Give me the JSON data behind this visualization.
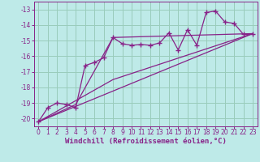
{
  "xlabel": "Windchill (Refroidissement éolien,°C)",
  "background_color": "#beeae8",
  "grid_color": "#99ccbb",
  "line_color": "#882288",
  "xlim": [
    -0.5,
    23.5
  ],
  "ylim": [
    -20.5,
    -12.5
  ],
  "xticks": [
    0,
    1,
    2,
    3,
    4,
    5,
    6,
    7,
    8,
    9,
    10,
    11,
    12,
    13,
    14,
    15,
    16,
    17,
    18,
    19,
    20,
    21,
    22,
    23
  ],
  "yticks": [
    -13,
    -14,
    -15,
    -16,
    -17,
    -18,
    -19,
    -20
  ],
  "scatter_x": [
    0,
    1,
    2,
    3,
    4,
    5,
    6,
    7,
    8,
    9,
    10,
    11,
    12,
    13,
    14,
    15,
    16,
    17,
    18,
    19,
    20,
    21,
    22,
    23
  ],
  "scatter_y": [
    -20.2,
    -19.3,
    -19.0,
    -19.1,
    -19.3,
    -16.6,
    -16.4,
    -16.1,
    -14.8,
    -15.2,
    -15.3,
    -15.25,
    -15.3,
    -15.15,
    -14.5,
    -15.6,
    -14.3,
    -15.3,
    -13.2,
    -13.1,
    -13.8,
    -13.9,
    -14.6,
    -14.6
  ],
  "line1_x": [
    0,
    23
  ],
  "line1_y": [
    -20.2,
    -14.55
  ],
  "line2_x": [
    0,
    4,
    8,
    23
  ],
  "line2_y": [
    -20.2,
    -19.1,
    -14.8,
    -14.55
  ],
  "line3_x": [
    0,
    8,
    23
  ],
  "line3_y": [
    -20.2,
    -17.5,
    -14.55
  ],
  "font_color": "#882288",
  "tick_fontsize": 5.5,
  "xlabel_fontsize": 6.5
}
